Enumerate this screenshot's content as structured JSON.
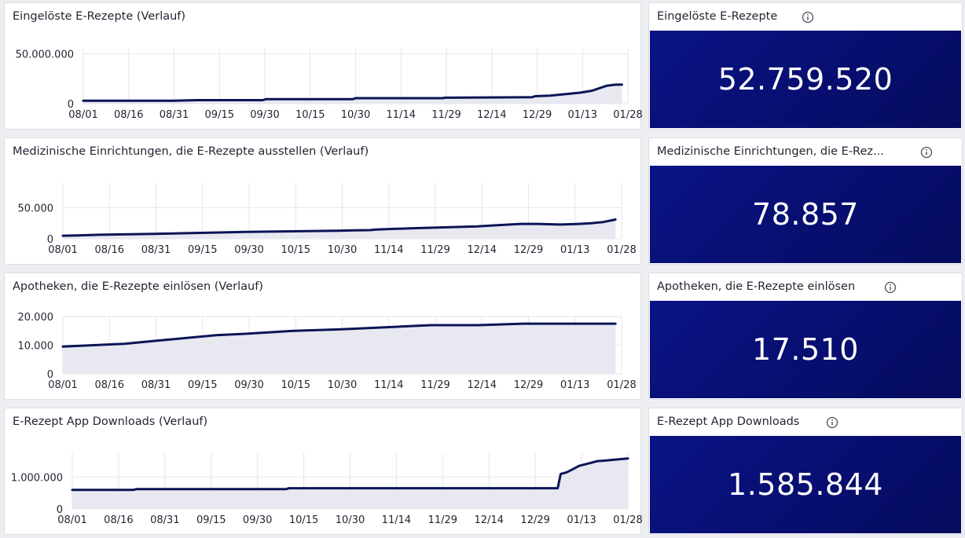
{
  "colors": {
    "accent": "#0a1485",
    "line": "#0b1556",
    "area": "#e5e6ef",
    "grid": "#e4e6ea"
  },
  "icons": {
    "info": "info-icon"
  },
  "chart_data": [
    {
      "type": "area",
      "title": "Eingelöste E-Rezepte (Verlauf)",
      "xlabel": "",
      "ylabel": "",
      "x_ticks": [
        "08/01",
        "08/16",
        "08/31",
        "09/15",
        "09/30",
        "10/15",
        "10/30",
        "11/14",
        "11/29",
        "12/14",
        "12/29",
        "01/13",
        "01/28"
      ],
      "x_range": [
        0,
        182
      ],
      "ylim": [
        0,
        55000000
      ],
      "y_ticks": [
        0,
        50000000
      ],
      "y_tick_labels": [
        "0",
        "50.000.000"
      ],
      "series": [
        {
          "name": "Eingelöste E-Rezepte",
          "x": [
            0,
            30,
            38,
            60,
            61,
            90,
            91,
            120,
            121,
            150,
            151,
            156,
            166,
            170,
            175,
            178,
            180
          ],
          "y": [
            3000000,
            3000000,
            3500000,
            3500000,
            4500000,
            4500000,
            5500000,
            5500000,
            6000000,
            6500000,
            7500000,
            8000000,
            11000000,
            13000000,
            18000000,
            19000000,
            19000000
          ]
        }
      ]
    },
    {
      "type": "area",
      "title": "Medizinische Einrichtungen, die E-Rezepte ausstellen (Verlauf)",
      "xlabel": "",
      "ylabel": "",
      "x_ticks": [
        "08/01",
        "08/16",
        "08/31",
        "09/15",
        "09/30",
        "10/15",
        "10/30",
        "11/14",
        "11/29",
        "12/14",
        "12/29",
        "01/13",
        "01/28"
      ],
      "x_range": [
        0,
        182
      ],
      "ylim": [
        0,
        90000
      ],
      "y_ticks": [
        0,
        50000
      ],
      "y_tick_labels": [
        "0",
        "50.000"
      ],
      "series": [
        {
          "name": "Medizinische Einrichtungen",
          "x": [
            0,
            5,
            12,
            30,
            45,
            60,
            75,
            90,
            95,
            100,
            102,
            108,
            114,
            125,
            135,
            142,
            149,
            155,
            162,
            168,
            172,
            176,
            180
          ],
          "y": [
            5000,
            5500,
            6500,
            8000,
            9500,
            11000,
            12000,
            13000,
            13500,
            14000,
            15000,
            16000,
            17000,
            18500,
            20000,
            22000,
            24000,
            24000,
            23000,
            24000,
            25000,
            27000,
            31000
          ]
        }
      ]
    },
    {
      "type": "area",
      "title": "Apotheken, die E-Rezepte einlösen (Verlauf)",
      "xlabel": "",
      "ylabel": "",
      "x_ticks": [
        "08/01",
        "08/16",
        "08/31",
        "09/15",
        "09/30",
        "10/15",
        "10/30",
        "11/14",
        "11/29",
        "12/14",
        "12/29",
        "01/13",
        "01/28"
      ],
      "x_range": [
        0,
        182
      ],
      "ylim": [
        0,
        20000
      ],
      "y_ticks": [
        0,
        10000,
        20000
      ],
      "y_tick_labels": [
        "0",
        "10.000",
        "20.000"
      ],
      "series": [
        {
          "name": "Apotheken",
          "x": [
            0,
            10,
            20,
            30,
            40,
            50,
            60,
            75,
            90,
            100,
            110,
            120,
            135,
            150,
            160,
            170,
            180
          ],
          "y": [
            9500,
            10000,
            10500,
            11500,
            12500,
            13500,
            14000,
            15000,
            15500,
            16000,
            16500,
            17000,
            17000,
            17500,
            17500,
            17500,
            17500
          ]
        }
      ]
    },
    {
      "type": "area",
      "title": "E-Rezept App Downloads (Verlauf)",
      "xlabel": "",
      "ylabel": "",
      "x_ticks": [
        "08/01",
        "08/16",
        "08/31",
        "09/15",
        "09/30",
        "10/15",
        "10/30",
        "11/14",
        "11/29",
        "12/14",
        "12/29",
        "01/13",
        "01/28"
      ],
      "x_range": [
        0,
        182
      ],
      "ylim": [
        0,
        1750000
      ],
      "y_ticks": [
        0,
        1000000
      ],
      "y_tick_labels": [
        "0",
        "1.000.000"
      ],
      "series": [
        {
          "name": "App Downloads",
          "x": [
            0,
            20,
            21,
            70,
            71,
            159,
            160,
            162,
            163,
            164,
            166,
            168,
            170,
            172,
            175,
            178,
            182
          ],
          "y": [
            600000,
            600000,
            620000,
            620000,
            650000,
            650000,
            1100000,
            1150000,
            1200000,
            1250000,
            1350000,
            1400000,
            1450000,
            1500000,
            1520000,
            1550000,
            1585844
          ]
        }
      ]
    }
  ],
  "kpis": [
    {
      "title": "Eingelöste E-Rezepte",
      "value": "52.759.520"
    },
    {
      "title": "Medizinische Einrichtungen, die E-Rez...",
      "value": "78.857"
    },
    {
      "title": "Apotheken, die E-Rezepte einlösen",
      "value": "17.510"
    },
    {
      "title": "E-Rezept App Downloads",
      "value": "1.585.844"
    }
  ]
}
